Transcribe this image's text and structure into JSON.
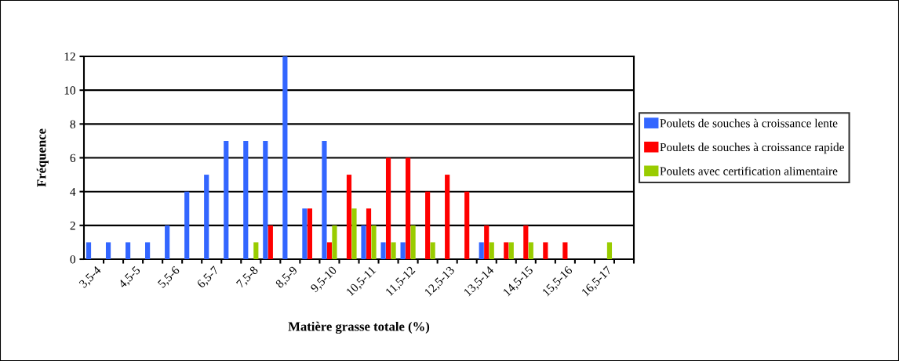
{
  "chart_data": {
    "type": "bar",
    "xlabel": "Matière grasse totale (%)",
    "ylabel": "Fréquence",
    "categories": [
      "3,5-4",
      null,
      "4,5-5",
      null,
      "5,5-6",
      null,
      "6,5-7",
      null,
      "7,5-8",
      null,
      "8,5-9",
      null,
      "9,5-10",
      null,
      "10,5-11",
      null,
      "11,5-12",
      null,
      "12,5-13",
      null,
      "13,5-14",
      null,
      "14,5-15",
      null,
      "15,5-16",
      null,
      "16,5-17",
      null
    ],
    "series": [
      {
        "name": "Poulets de souches à croissance lente",
        "color": "#3366ff",
        "values": [
          1,
          1,
          1,
          1,
          2,
          4,
          5,
          7,
          7,
          7,
          12,
          3,
          7,
          0,
          2,
          1,
          1,
          0,
          0,
          0,
          1,
          0,
          0,
          0,
          0,
          0,
          0,
          0
        ]
      },
      {
        "name": "Poulets de souches à croissance rapide",
        "color": "#ff0000",
        "values": [
          0,
          0,
          0,
          0,
          0,
          0,
          0,
          0,
          0,
          2,
          0,
          3,
          1,
          5,
          3,
          6,
          6,
          4,
          5,
          4,
          2,
          1,
          2,
          1,
          1,
          0,
          0,
          0
        ]
      },
      {
        "name": "Poulets avec certification alimentaire",
        "color": "#99cc00",
        "values": [
          0,
          0,
          0,
          0,
          0,
          0,
          0,
          0,
          1,
          0,
          0,
          0,
          2,
          3,
          2,
          1,
          2,
          1,
          0,
          0,
          1,
          1,
          1,
          0,
          0,
          0,
          1,
          0
        ]
      }
    ],
    "ylim": [
      0,
      12
    ],
    "yticks": [
      0,
      2,
      4,
      6,
      8,
      10,
      12
    ],
    "grid": "y",
    "legend": "right"
  }
}
